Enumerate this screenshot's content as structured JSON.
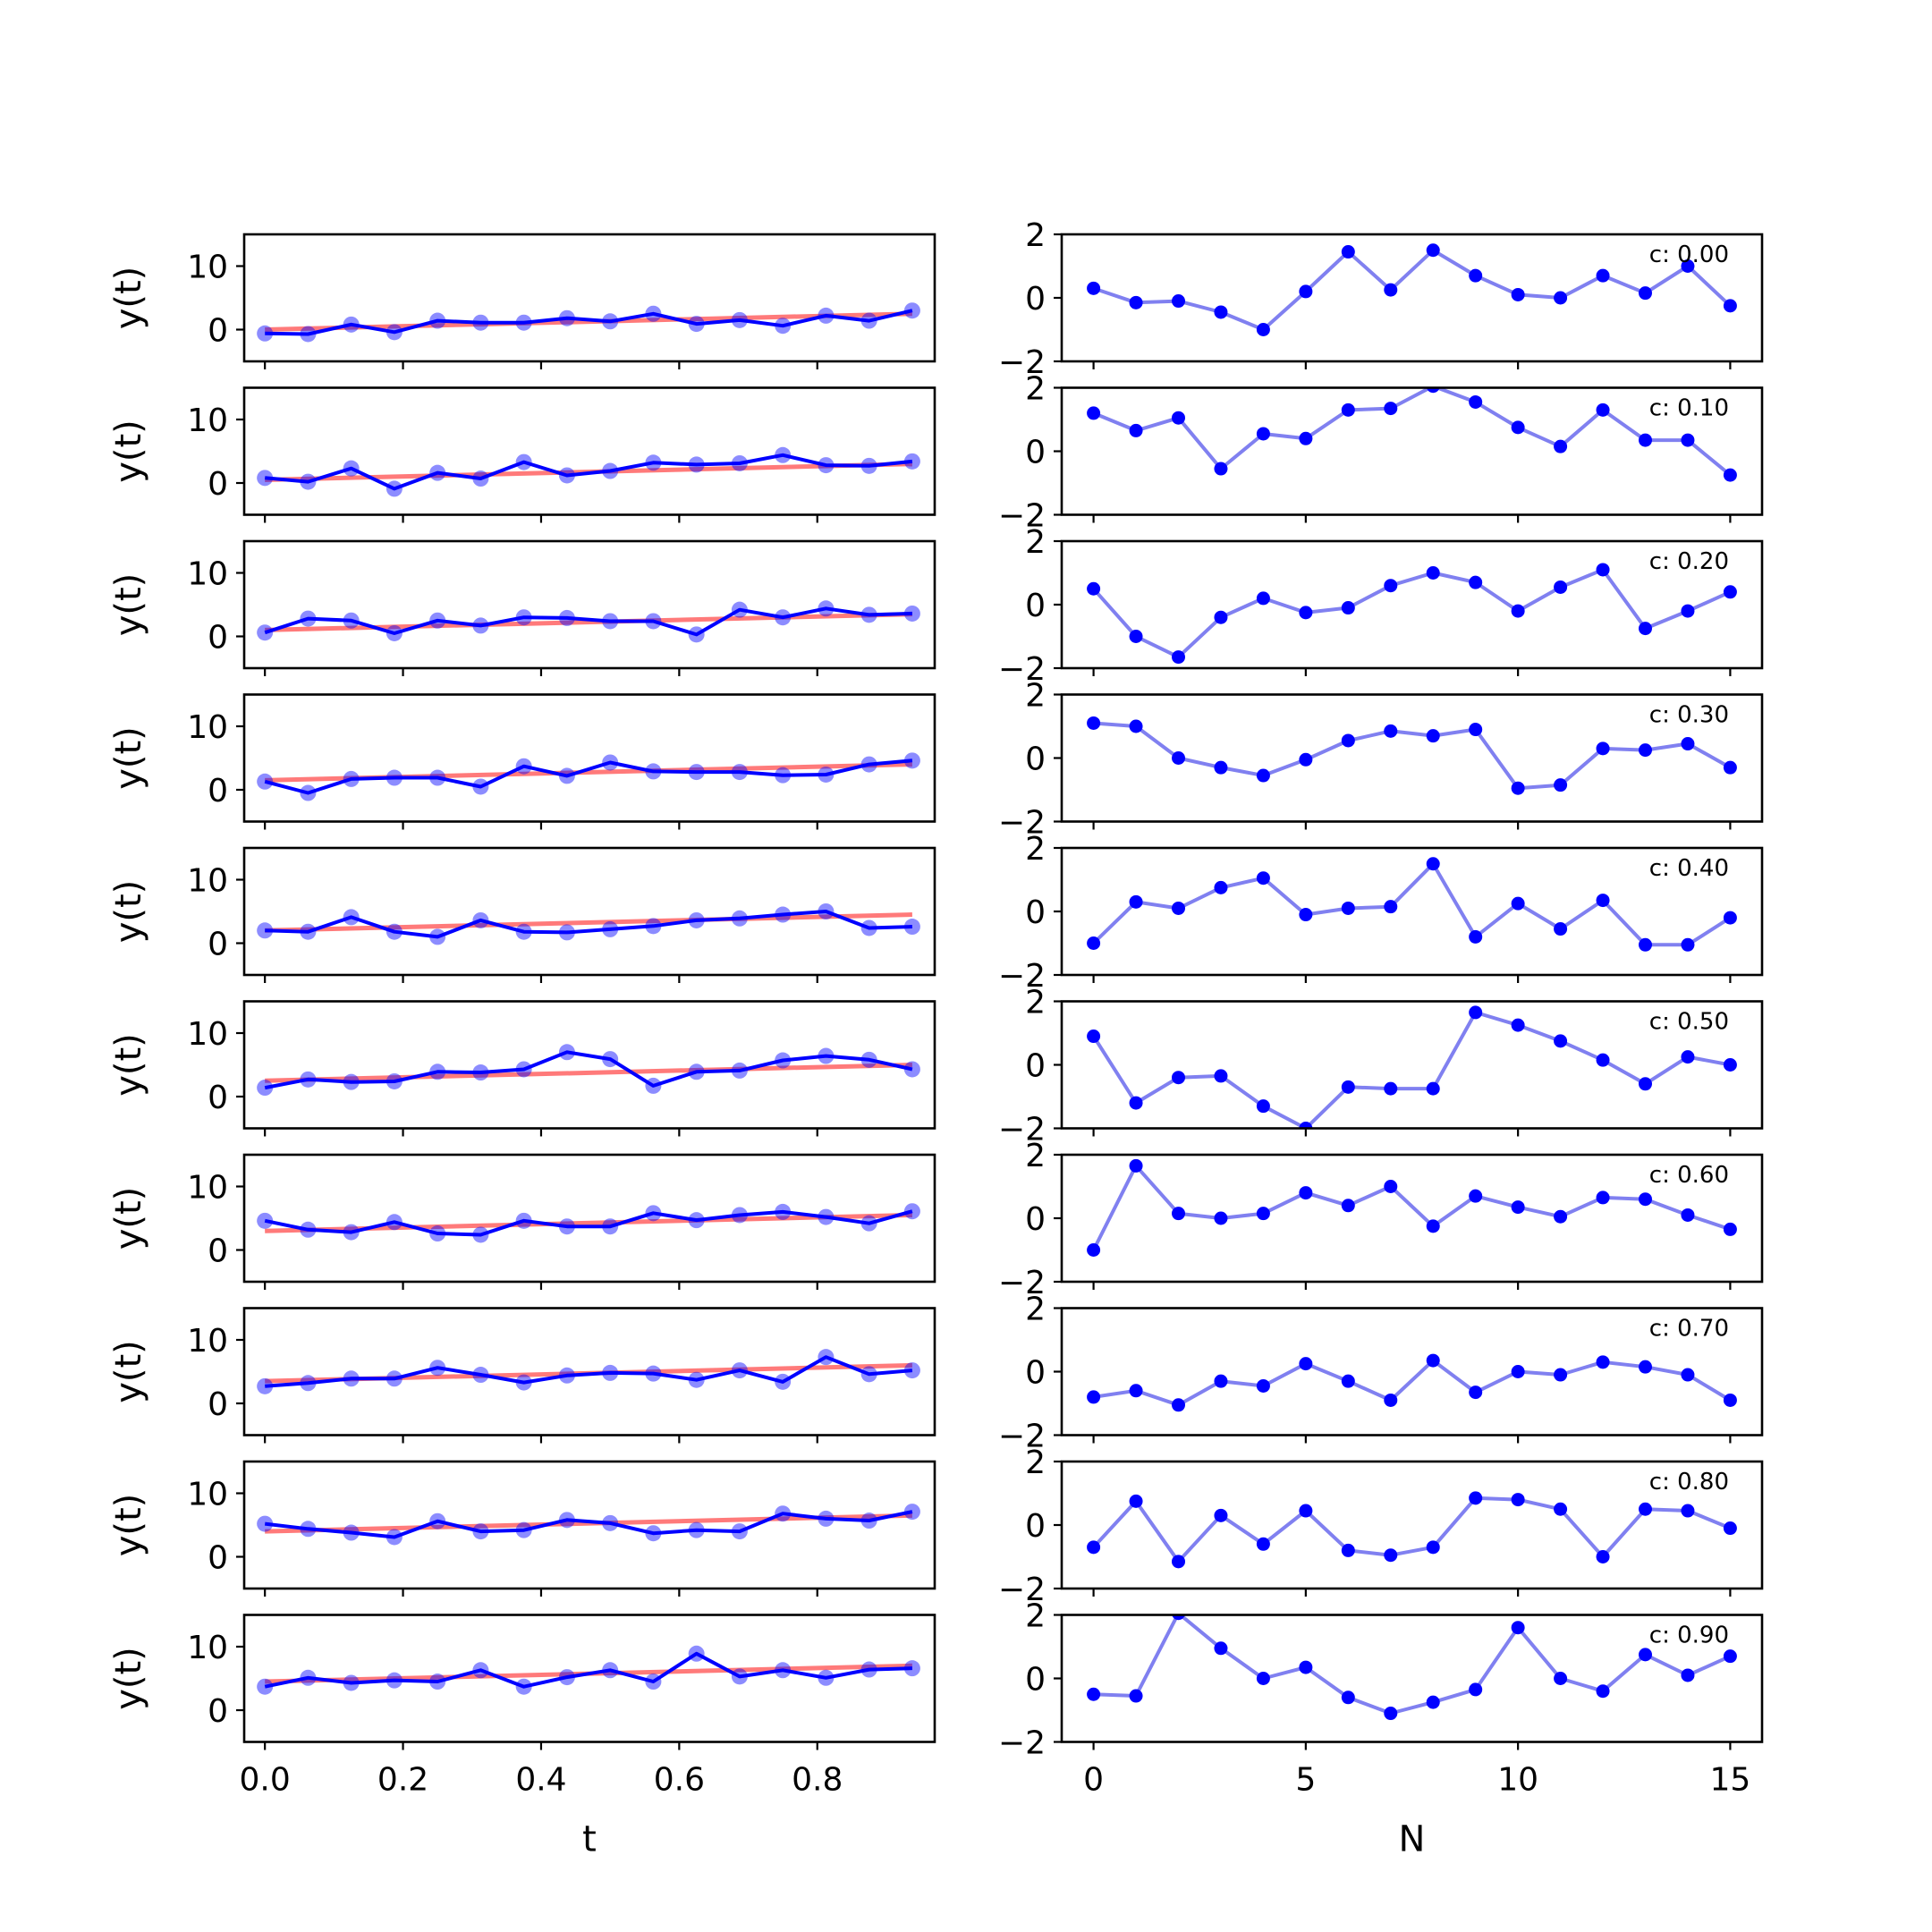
{
  "chart_data": [
    {
      "panel": "left",
      "type": "line",
      "xlabel": "t",
      "ylabel": "y(t)",
      "xlim": [
        -0.03,
        0.97
      ],
      "ylim": [
        -5,
        15
      ],
      "x_ticks": [
        "0.0",
        "0.2",
        "0.4",
        "0.6",
        "0.8"
      ],
      "y_ticks": [
        "0",
        "10"
      ],
      "colors": {
        "data": "#0000ff",
        "fit": "#ff6b6b"
      },
      "x": [
        0.0,
        0.0625,
        0.125,
        0.1875,
        0.25,
        0.3125,
        0.375,
        0.4375,
        0.5,
        0.5625,
        0.625,
        0.6875,
        0.75,
        0.8125,
        0.875,
        0.9375
      ],
      "rows": [
        {
          "y": [
            -0.6,
            -0.7,
            0.8,
            -0.4,
            1.4,
            1.1,
            1.1,
            1.8,
            1.3,
            2.5,
            0.9,
            1.5,
            0.6,
            2.2,
            1.4,
            3.0
          ],
          "fit": [
            0.0,
            2.5
          ]
        },
        {
          "y": [
            0.8,
            0.2,
            2.3,
            -0.9,
            1.6,
            0.7,
            3.3,
            1.2,
            1.9,
            3.2,
            2.9,
            3.1,
            4.4,
            2.8,
            2.7,
            3.4
          ],
          "fit": [
            0.5,
            3.0
          ]
        },
        {
          "y": [
            0.6,
            2.8,
            2.5,
            0.5,
            2.5,
            1.7,
            3.0,
            2.9,
            2.4,
            2.4,
            0.3,
            4.2,
            3.0,
            4.4,
            3.4,
            3.6
          ],
          "fit": [
            1.0,
            3.5
          ]
        },
        {
          "y": [
            1.3,
            -0.5,
            1.7,
            1.9,
            1.9,
            0.5,
            3.7,
            2.2,
            4.3,
            2.9,
            2.8,
            2.8,
            2.3,
            2.4,
            4.0,
            4.6
          ],
          "fit": [
            1.5,
            4.0
          ]
        },
        {
          "y": [
            2.0,
            1.8,
            4.1,
            1.8,
            1.0,
            3.6,
            1.8,
            1.7,
            2.2,
            2.7,
            3.6,
            3.9,
            4.5,
            5.0,
            2.4,
            2.6
          ],
          "fit": [
            2.0,
            4.5
          ]
        },
        {
          "y": [
            1.4,
            2.7,
            2.3,
            2.4,
            3.9,
            3.8,
            4.3,
            7.0,
            5.9,
            1.7,
            3.9,
            4.1,
            5.7,
            6.4,
            5.8,
            4.3
          ],
          "fit": [
            2.5,
            5.0
          ]
        },
        {
          "y": [
            4.6,
            3.2,
            2.8,
            4.4,
            2.6,
            2.4,
            4.6,
            3.7,
            3.7,
            5.8,
            4.7,
            5.5,
            6.0,
            5.2,
            4.2,
            6.1
          ],
          "fit": [
            3.0,
            5.5
          ]
        },
        {
          "y": [
            2.7,
            3.2,
            3.9,
            3.9,
            5.6,
            4.5,
            3.3,
            4.4,
            4.8,
            4.7,
            3.7,
            5.2,
            3.4,
            7.3,
            4.6,
            5.2
          ],
          "fit": [
            3.5,
            6.0
          ]
        },
        {
          "y": [
            5.2,
            4.4,
            3.8,
            3.1,
            5.6,
            4.0,
            4.2,
            5.8,
            5.3,
            3.7,
            4.2,
            4.0,
            6.8,
            6.0,
            5.7,
            7.1
          ],
          "fit": [
            4.0,
            6.5
          ]
        },
        {
          "y": [
            3.7,
            5.1,
            4.3,
            4.7,
            4.5,
            6.3,
            3.7,
            5.2,
            6.3,
            4.5,
            8.9,
            5.3,
            6.3,
            5.1,
            6.4,
            6.6
          ],
          "fit": [
            4.5,
            7.0
          ]
        }
      ]
    },
    {
      "panel": "right",
      "type": "line",
      "xlabel": "N",
      "xlim": [
        -0.75,
        15.75
      ],
      "ylim": [
        -2,
        2
      ],
      "x_ticks": [
        "0",
        "5",
        "10",
        "15"
      ],
      "y_ticks": [
        "−2",
        "0",
        "2"
      ],
      "colors": {
        "line": "#8080f0",
        "marker": "#0000ff"
      },
      "x": [
        0,
        1,
        2,
        3,
        4,
        5,
        6,
        7,
        8,
        9,
        10,
        11,
        12,
        13,
        14,
        15
      ],
      "rows": [
        {
          "label": "c: 0.00",
          "y": [
            0.3,
            -0.15,
            -0.1,
            -0.45,
            -1.0,
            0.2,
            1.45,
            0.25,
            1.5,
            0.7,
            0.1,
            0.0,
            0.7,
            0.15,
            1.0,
            -0.25
          ]
        },
        {
          "label": "c: 0.10",
          "y": [
            1.2,
            0.65,
            1.05,
            -0.55,
            0.55,
            0.4,
            1.3,
            1.35,
            2.05,
            1.55,
            0.75,
            0.15,
            1.3,
            0.35,
            0.35,
            -0.75
          ]
        },
        {
          "label": "c: 0.20",
          "y": [
            0.5,
            -1.0,
            -1.65,
            -0.4,
            0.2,
            -0.25,
            -0.1,
            0.6,
            1.0,
            0.7,
            -0.2,
            0.55,
            1.1,
            -0.75,
            -0.2,
            0.4
          ]
        },
        {
          "label": "c: 0.30",
          "y": [
            1.1,
            1.0,
            0.0,
            -0.3,
            -0.55,
            -0.05,
            0.55,
            0.85,
            0.7,
            0.9,
            -0.95,
            -0.85,
            0.3,
            0.25,
            0.45,
            -0.3
          ]
        },
        {
          "label": "c: 0.40",
          "y": [
            -1.0,
            0.3,
            0.1,
            0.75,
            1.05,
            -0.1,
            0.1,
            0.15,
            1.5,
            -0.8,
            0.25,
            -0.55,
            0.35,
            -1.05,
            -1.05,
            -0.2
          ]
        },
        {
          "label": "c: 0.50",
          "y": [
            0.9,
            -1.2,
            -0.4,
            -0.35,
            -1.3,
            -2.0,
            -0.7,
            -0.75,
            -0.75,
            1.65,
            1.25,
            0.75,
            0.15,
            -0.6,
            0.25,
            0.0
          ]
        },
        {
          "label": "c: 0.60",
          "y": [
            -1.0,
            1.65,
            0.15,
            0.0,
            0.15,
            0.8,
            0.4,
            1.0,
            -0.25,
            0.7,
            0.35,
            0.05,
            0.65,
            0.6,
            0.1,
            -0.35
          ]
        },
        {
          "label": "c: 0.70",
          "y": [
            -0.8,
            -0.6,
            -1.05,
            -0.3,
            -0.45,
            0.25,
            -0.3,
            -0.9,
            0.35,
            -0.65,
            0.0,
            -0.1,
            0.3,
            0.15,
            -0.1,
            -0.9
          ]
        },
        {
          "label": "c: 0.80",
          "y": [
            -0.7,
            0.75,
            -1.15,
            0.3,
            -0.6,
            0.45,
            -0.8,
            -0.95,
            -0.7,
            0.85,
            0.8,
            0.5,
            -1.0,
            0.5,
            0.45,
            -0.1
          ]
        },
        {
          "label": "c: 0.90",
          "y": [
            -0.5,
            -0.55,
            2.05,
            0.95,
            0.0,
            0.35,
            -0.6,
            -1.1,
            -0.75,
            -0.35,
            1.6,
            0.0,
            -0.4,
            0.75,
            0.1,
            0.7
          ]
        }
      ]
    }
  ]
}
